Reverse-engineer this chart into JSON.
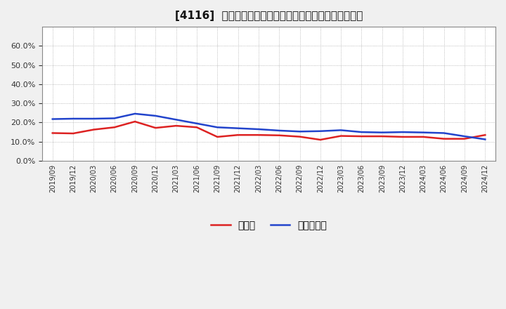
{
  "title": "[4116]  現預金、有利子負債の総資産に対する比率の推移",
  "x_labels": [
    "2019/09",
    "2019/12",
    "2020/03",
    "2020/06",
    "2020/09",
    "2020/12",
    "2021/03",
    "2021/06",
    "2021/09",
    "2021/12",
    "2022/03",
    "2022/06",
    "2022/09",
    "2022/12",
    "2023/03",
    "2023/06",
    "2023/09",
    "2023/12",
    "2024/03",
    "2024/06",
    "2024/09",
    "2024/12"
  ],
  "cash": [
    0.145,
    0.143,
    0.163,
    0.175,
    0.205,
    0.172,
    0.183,
    0.175,
    0.125,
    0.135,
    0.135,
    0.133,
    0.126,
    0.11,
    0.13,
    0.128,
    0.128,
    0.125,
    0.125,
    0.115,
    0.115,
    0.135
  ],
  "debt": [
    0.218,
    0.22,
    0.22,
    0.222,
    0.246,
    0.235,
    0.215,
    0.195,
    0.175,
    0.17,
    0.165,
    0.158,
    0.153,
    0.155,
    0.16,
    0.15,
    0.148,
    0.15,
    0.148,
    0.145,
    0.128,
    0.112
  ],
  "cash_color": "#dd2222",
  "debt_color": "#2244cc",
  "background_color": "#f0f0f0",
  "plot_bg_color": "#ffffff",
  "ylim": [
    0.0,
    0.7
  ],
  "yticks": [
    0.0,
    0.1,
    0.2,
    0.3,
    0.4,
    0.5,
    0.6
  ],
  "legend_cash": "現預金",
  "legend_debt": "有利子負債",
  "line_width": 1.8
}
